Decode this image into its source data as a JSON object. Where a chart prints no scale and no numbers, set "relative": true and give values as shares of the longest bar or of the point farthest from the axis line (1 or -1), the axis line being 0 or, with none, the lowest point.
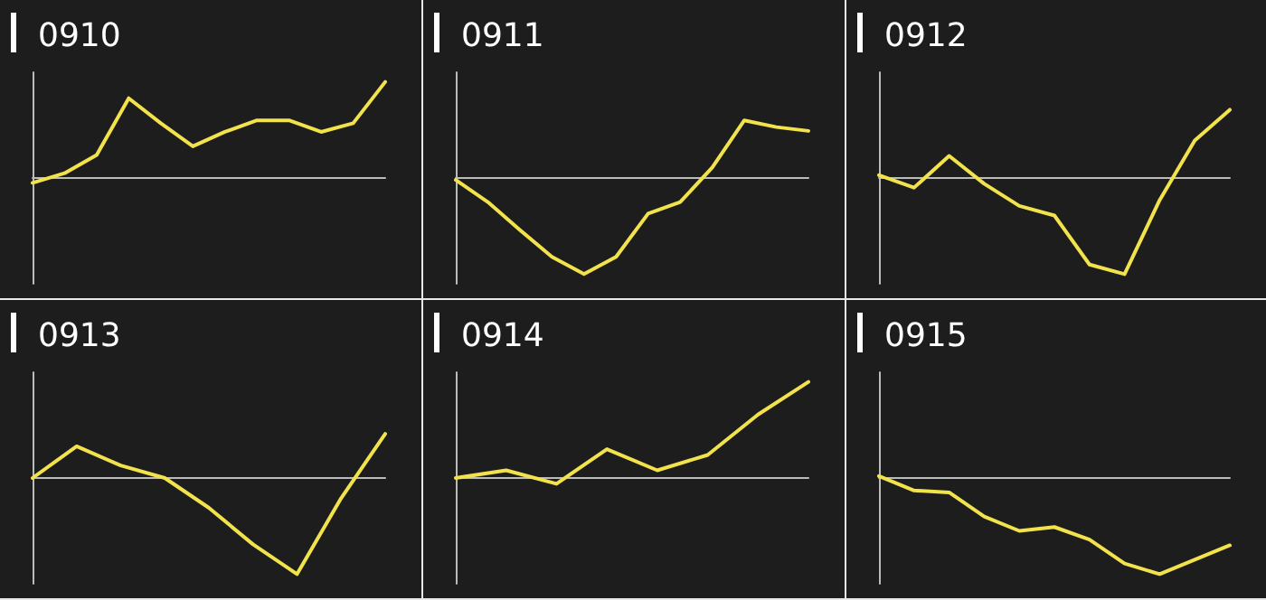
{
  "chart_data": [
    {
      "type": "line",
      "title": "0910",
      "relative": true,
      "marker": "none",
      "categories": [
        null,
        null,
        null,
        null,
        null,
        null,
        null,
        null,
        null,
        null,
        null,
        null
      ],
      "series": [
        {
          "color": "#f2e34c",
          "values": [
            -0.05,
            0.05,
            0.24,
            0.83,
            0.57,
            0.33,
            0.48,
            0.6,
            0.6,
            0.48,
            0.57,
            1
          ]
        }
      ]
    },
    {
      "type": "line",
      "title": "0911",
      "relative": true,
      "marker": "none",
      "categories": [
        null,
        null,
        null,
        null,
        null,
        null,
        null,
        null,
        null,
        null,
        null,
        null
      ],
      "series": [
        {
          "color": "#f2e34c",
          "values": [
            -0.02,
            -0.25,
            -0.54,
            -0.82,
            -1,
            -0.82,
            -0.37,
            -0.25,
            0.11,
            0.6,
            0.53,
            0.49
          ]
        }
      ]
    },
    {
      "type": "line",
      "title": "0912",
      "relative": true,
      "marker": "none",
      "categories": [
        null,
        null,
        null,
        null,
        null,
        null,
        null,
        null,
        null,
        null,
        null
      ],
      "series": [
        {
          "color": "#f2e34c",
          "values": [
            0.03,
            -0.1,
            0.23,
            -0.06,
            -0.29,
            -0.39,
            -0.9,
            -1,
            -0.23,
            0.39,
            0.71
          ]
        }
      ]
    },
    {
      "type": "line",
      "title": "0913",
      "relative": true,
      "marker": "none",
      "categories": [
        null,
        null,
        null,
        null,
        null,
        null,
        null,
        null,
        null
      ],
      "series": [
        {
          "color": "#f2e34c",
          "values": [
            0,
            0.33,
            0.13,
            0,
            -0.31,
            -0.69,
            -1,
            -0.21,
            0.46
          ]
        }
      ]
    },
    {
      "type": "line",
      "title": "0914",
      "relative": true,
      "marker": "none",
      "categories": [
        null,
        null,
        null,
        null,
        null,
        null,
        null,
        null
      ],
      "series": [
        {
          "color": "#f2e34c",
          "values": [
            0,
            0.08,
            -0.06,
            0.3,
            0.08,
            0.24,
            0.66,
            1
          ]
        }
      ]
    },
    {
      "type": "line",
      "title": "0915",
      "relative": true,
      "marker": "none",
      "categories": [
        null,
        null,
        null,
        null,
        null,
        null,
        null,
        null,
        null,
        null,
        null
      ],
      "series": [
        {
          "color": "#f2e34c",
          "values": [
            0.02,
            -0.13,
            -0.15,
            -0.4,
            -0.55,
            -0.51,
            -0.64,
            -0.89,
            -1,
            -0.85,
            -0.7
          ]
        }
      ]
    }
  ]
}
